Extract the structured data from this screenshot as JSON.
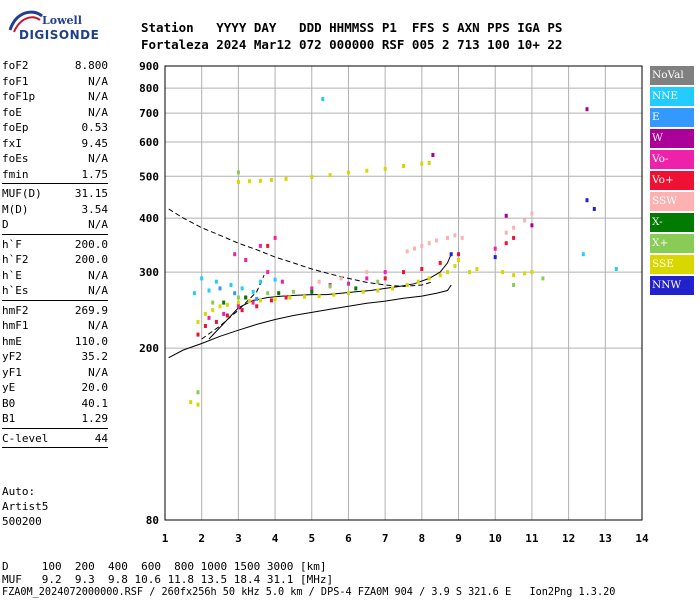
{
  "logo": {
    "top": "Lowell",
    "bottom": "DIGISONDE"
  },
  "header": {
    "row1": "Station   YYYY DAY   DDD HHMMSS P1  FFS S AXN PPS IGA PS",
    "row2": "Fortaleza 2024 Mar12 072 000000 RSF 005 2 713 100 10+ 22"
  },
  "params": [
    {
      "label": "foF2",
      "value": "8.800"
    },
    {
      "label": "foF1",
      "value": "N/A"
    },
    {
      "label": "foF1p",
      "value": "N/A"
    },
    {
      "label": "foE",
      "value": "N/A"
    },
    {
      "label": "foEp",
      "value": "0.53"
    },
    {
      "label": "fxI",
      "value": "9.45"
    },
    {
      "label": "foEs",
      "value": "N/A"
    },
    {
      "label": "fmin",
      "value": "1.75"
    },
    {
      "sep": true
    },
    {
      "label": "MUF(D)",
      "value": "31.15"
    },
    {
      "label": "M(D)",
      "value": "3.54"
    },
    {
      "label": "D",
      "value": "N/A"
    },
    {
      "sep": true
    },
    {
      "label": "h`F",
      "value": "200.0"
    },
    {
      "label": "h`F2",
      "value": "200.0"
    },
    {
      "label": "h`E",
      "value": "N/A"
    },
    {
      "label": "h`Es",
      "value": "N/A"
    },
    {
      "sep": true
    },
    {
      "label": "hmF2",
      "value": "269.9"
    },
    {
      "label": "hmF1",
      "value": "N/A"
    },
    {
      "label": "hmE",
      "value": "110.0"
    },
    {
      "label": "yF2",
      "value": "35.2"
    },
    {
      "label": "yF1",
      "value": "N/A"
    },
    {
      "label": "yE",
      "value": "20.0"
    },
    {
      "label": "B0",
      "value": "40.1"
    },
    {
      "label": "B1",
      "value": "1.29"
    },
    {
      "sep": true
    },
    {
      "label": "C-level",
      "value": "44"
    },
    {
      "sep": true
    }
  ],
  "auto": {
    "line1": "Auto:",
    "line2": "Artist5",
    "line3": "500200"
  },
  "footer": {
    "row1": "D     100  200  400  600  800 1000 1500 3000 [km]",
    "row2": "MUF   9.2  9.3  9.8 10.6 11.8 13.5 18.4 31.1 [MHz]",
    "row3": "FZA0M_2024072000000.RSF / 260fx256h 50 kHz 5.0 km / DPS-4 FZA0M 904 / 3.9 S 321.6 E   Ion2Png 1.3.20"
  },
  "legend": [
    {
      "label": "NoVal",
      "color": "#808080"
    },
    {
      "label": "NNE",
      "color": "#22ccff"
    },
    {
      "label": "E",
      "color": "#3399ff"
    },
    {
      "label": "W",
      "color": "#aa0099"
    },
    {
      "label": "Vo-",
      "color": "#ee22aa"
    },
    {
      "label": "Vo+",
      "color": "#ee1133"
    },
    {
      "label": "SSW",
      "color": "#ffb0b0"
    },
    {
      "label": "X-",
      "color": "#007a00"
    },
    {
      "label": "X+",
      "color": "#88cc55"
    },
    {
      "label": "SSE",
      "color": "#d8d800"
    },
    {
      "label": "NNW",
      "color": "#2222cc"
    }
  ],
  "chart_data": {
    "type": "scatter",
    "title": "",
    "xlabel": "",
    "ylabel": "",
    "xlim": [
      1,
      14
    ],
    "ylim": [
      80,
      900
    ],
    "xticks": [
      1,
      2,
      3,
      4,
      5,
      6,
      7,
      8,
      9,
      10,
      11,
      12,
      13,
      14
    ],
    "yticks": [
      80,
      200,
      300,
      400,
      500,
      600,
      700,
      800,
      900
    ],
    "y_scale": "log",
    "grid": true,
    "series": [
      {
        "name": "SSE",
        "color": "#d8d800",
        "points": [
          [
            1.9,
            230
          ],
          [
            2.1,
            240
          ],
          [
            2.3,
            245
          ],
          [
            2.5,
            250
          ],
          [
            2.7,
            252
          ],
          [
            3.0,
            255
          ],
          [
            3.3,
            257
          ],
          [
            3.6,
            258
          ],
          [
            4.0,
            260
          ],
          [
            4.4,
            262
          ],
          [
            4.8,
            263
          ],
          [
            5.2,
            264
          ],
          [
            5.6,
            266
          ],
          [
            6.0,
            268
          ],
          [
            6.4,
            270
          ],
          [
            6.8,
            272
          ],
          [
            7.2,
            275
          ],
          [
            7.6,
            280
          ],
          [
            7.9,
            285
          ],
          [
            8.2,
            290
          ],
          [
            8.5,
            295
          ],
          [
            8.7,
            300
          ],
          [
            8.9,
            310
          ],
          [
            9.0,
            320
          ],
          [
            9.3,
            300
          ],
          [
            9.5,
            305
          ],
          [
            10.2,
            300
          ],
          [
            10.5,
            295
          ],
          [
            10.8,
            298
          ],
          [
            11.0,
            300
          ],
          [
            3.0,
            485
          ],
          [
            3.3,
            487
          ],
          [
            3.6,
            488
          ],
          [
            3.9,
            490
          ],
          [
            4.3,
            493
          ],
          [
            5.0,
            498
          ],
          [
            5.5,
            503
          ],
          [
            6.0,
            510
          ],
          [
            6.5,
            515
          ],
          [
            7.0,
            520
          ],
          [
            7.5,
            528
          ],
          [
            8.0,
            535
          ],
          [
            8.2,
            537
          ],
          [
            1.7,
            150
          ],
          [
            1.9,
            148
          ]
        ]
      },
      {
        "name": "SSW",
        "color": "#ffb0b0",
        "points": [
          [
            7.6,
            335
          ],
          [
            7.8,
            340
          ],
          [
            8.0,
            345
          ],
          [
            8.2,
            350
          ],
          [
            8.4,
            355
          ],
          [
            8.7,
            360
          ],
          [
            8.9,
            365
          ],
          [
            9.1,
            360
          ],
          [
            10.3,
            370
          ],
          [
            10.5,
            380
          ],
          [
            10.8,
            395
          ],
          [
            11.0,
            410
          ],
          [
            5.2,
            285
          ],
          [
            5.8,
            290
          ],
          [
            6.5,
            300
          ]
        ]
      },
      {
        "name": "NNE",
        "color": "#22ccff",
        "points": [
          [
            2.0,
            290
          ],
          [
            2.4,
            285
          ],
          [
            2.8,
            280
          ],
          [
            3.1,
            275
          ],
          [
            3.4,
            270
          ],
          [
            3.6,
            285
          ],
          [
            4.0,
            288
          ],
          [
            1.8,
            268
          ],
          [
            2.2,
            272
          ],
          [
            12.4,
            330
          ],
          [
            13.3,
            305
          ],
          [
            5.3,
            755
          ]
        ]
      },
      {
        "name": "E",
        "color": "#3399ff",
        "points": [
          [
            2.5,
            275
          ],
          [
            2.9,
            268
          ],
          [
            3.2,
            262
          ],
          [
            3.5,
            260
          ]
        ]
      },
      {
        "name": "W",
        "color": "#aa0099",
        "points": [
          [
            12.5,
            715
          ],
          [
            8.3,
            560
          ],
          [
            10.3,
            405
          ],
          [
            11.0,
            385
          ]
        ]
      },
      {
        "name": "Vo-",
        "color": "#ee22aa",
        "points": [
          [
            2.2,
            235
          ],
          [
            2.6,
            240
          ],
          [
            3.0,
            250
          ],
          [
            3.4,
            255
          ],
          [
            3.8,
            300
          ],
          [
            4.2,
            285
          ],
          [
            5.0,
            275
          ],
          [
            5.5,
            280
          ],
          [
            6.0,
            282
          ],
          [
            6.5,
            290
          ],
          [
            7.0,
            300
          ],
          [
            3.2,
            320
          ],
          [
            2.9,
            330
          ],
          [
            3.6,
            345
          ],
          [
            4.0,
            360
          ],
          [
            10.0,
            340
          ]
        ]
      },
      {
        "name": "Vo+",
        "color": "#ee1133",
        "points": [
          [
            1.9,
            215
          ],
          [
            2.1,
            225
          ],
          [
            2.4,
            230
          ],
          [
            2.7,
            238
          ],
          [
            3.1,
            245
          ],
          [
            3.5,
            250
          ],
          [
            3.9,
            258
          ],
          [
            4.3,
            262
          ],
          [
            7.0,
            290
          ],
          [
            7.5,
            300
          ],
          [
            8.0,
            305
          ],
          [
            8.5,
            315
          ],
          [
            9.0,
            330
          ],
          [
            10.3,
            350
          ],
          [
            10.5,
            360
          ],
          [
            3.8,
            345
          ]
        ]
      },
      {
        "name": "X-",
        "color": "#007a00",
        "points": [
          [
            2.6,
            255
          ],
          [
            3.2,
            262
          ],
          [
            4.1,
            268
          ],
          [
            5.0,
            270
          ],
          [
            6.2,
            275
          ]
        ]
      },
      {
        "name": "X+",
        "color": "#88cc55",
        "points": [
          [
            1.9,
            158
          ],
          [
            2.3,
            255
          ],
          [
            3.0,
            262
          ],
          [
            3.0,
            510
          ],
          [
            3.8,
            268
          ],
          [
            4.5,
            270
          ],
          [
            5.5,
            278
          ],
          [
            6.8,
            285
          ],
          [
            10.5,
            280
          ],
          [
            11.3,
            290
          ]
        ]
      },
      {
        "name": "NNW",
        "color": "#2222cc",
        "points": [
          [
            12.5,
            440
          ],
          [
            12.7,
            420
          ],
          [
            10.0,
            325
          ],
          [
            8.8,
            330
          ]
        ]
      }
    ],
    "traces": [
      {
        "style": "dashed",
        "points": [
          [
            1.1,
            420
          ],
          [
            1.5,
            400
          ],
          [
            2.0,
            380
          ],
          [
            2.5,
            365
          ],
          [
            3.0,
            350
          ],
          [
            3.5,
            338
          ],
          [
            4.0,
            325
          ],
          [
            4.5,
            315
          ],
          [
            5.0,
            305
          ],
          [
            5.5,
            297
          ],
          [
            6.0,
            290
          ],
          [
            6.5,
            284
          ],
          [
            7.0,
            280
          ],
          [
            7.5,
            278
          ],
          [
            8.0,
            280
          ],
          [
            8.3,
            285
          ]
        ]
      },
      {
        "style": "dashed",
        "points": [
          [
            2.0,
            210
          ],
          [
            2.5,
            225
          ],
          [
            3.0,
            245
          ],
          [
            3.5,
            270
          ],
          [
            3.7,
            295
          ]
        ]
      },
      {
        "style": "solid",
        "points": [
          [
            1.1,
            190
          ],
          [
            1.5,
            198
          ],
          [
            2.0,
            205
          ],
          [
            2.5,
            213
          ],
          [
            3.0,
            220
          ],
          [
            3.5,
            227
          ],
          [
            4.0,
            233
          ],
          [
            4.5,
            238
          ],
          [
            5.0,
            242
          ],
          [
            5.5,
            246
          ],
          [
            6.0,
            250
          ],
          [
            6.5,
            254
          ],
          [
            7.0,
            257
          ],
          [
            7.5,
            261
          ],
          [
            8.0,
            264
          ],
          [
            8.4,
            268
          ],
          [
            8.7,
            272
          ],
          [
            8.8,
            280
          ]
        ]
      },
      {
        "style": "solid",
        "points": [
          [
            2.2,
            210
          ],
          [
            2.6,
            228
          ],
          [
            3.0,
            248
          ],
          [
            3.4,
            258
          ],
          [
            3.8,
            262
          ],
          [
            4.2,
            264
          ],
          [
            4.6,
            265
          ],
          [
            5.0,
            266
          ],
          [
            5.4,
            266
          ],
          [
            5.8,
            268
          ],
          [
            6.2,
            270
          ],
          [
            6.6,
            272
          ],
          [
            7.0,
            275
          ],
          [
            7.4,
            278
          ],
          [
            7.8,
            282
          ],
          [
            8.2,
            290
          ],
          [
            8.5,
            300
          ],
          [
            8.7,
            315
          ],
          [
            8.8,
            330
          ]
        ]
      }
    ]
  }
}
